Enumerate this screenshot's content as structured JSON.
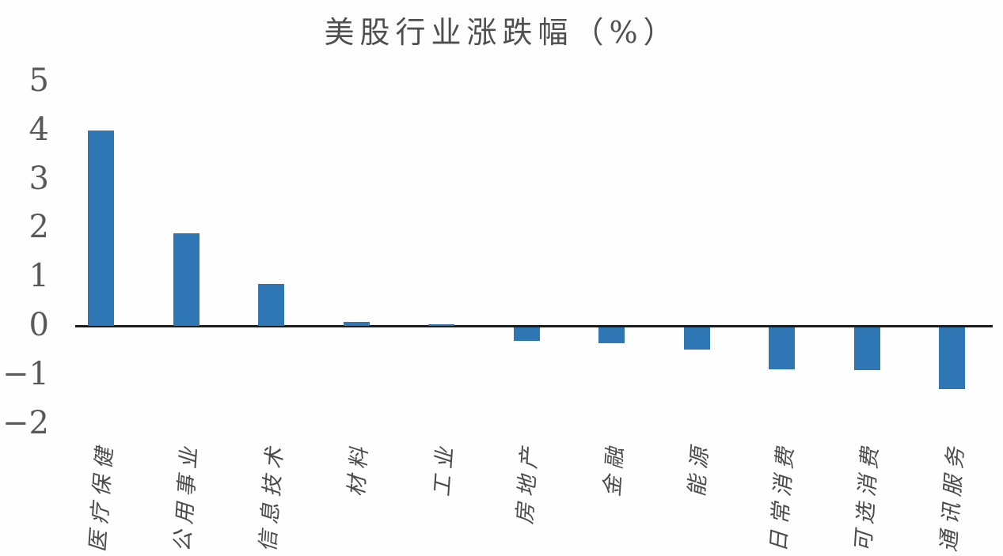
{
  "chart_data": {
    "type": "bar",
    "title": "美股行业涨跌幅（%）",
    "categories": [
      "医疗保健",
      "公用事业",
      "信息技术",
      "材料",
      "工业",
      "房地产",
      "金融",
      "能源",
      "日常消费",
      "可选消费",
      "通讯服务"
    ],
    "values": [
      4.0,
      1.9,
      0.85,
      0.08,
      0.04,
      -0.28,
      -0.32,
      -0.45,
      -0.85,
      -0.88,
      -1.27
    ],
    "series": [
      {
        "name": "涨跌幅",
        "values": [
          4.0,
          1.9,
          0.85,
          0.08,
          0.04,
          -0.28,
          -0.32,
          -0.45,
          -0.85,
          -0.88,
          -1.27
        ]
      }
    ],
    "xlabel": "",
    "ylabel": "",
    "ylim": [
      -2,
      5
    ],
    "yticks": [
      5,
      4,
      3,
      2,
      1,
      0,
      -1,
      -2
    ],
    "ytick_labels": [
      "5",
      "4",
      "3",
      "2",
      "1",
      "0",
      "−1",
      "−2"
    ],
    "grid": false,
    "legend_position": "none",
    "colors": {
      "bar": "#2f76b5",
      "axis_line": "#1c1c1c",
      "tick_label": "#595959",
      "title": "#4f4f4f",
      "category_label": "#4a4a4a",
      "background": "#fefefe"
    }
  }
}
